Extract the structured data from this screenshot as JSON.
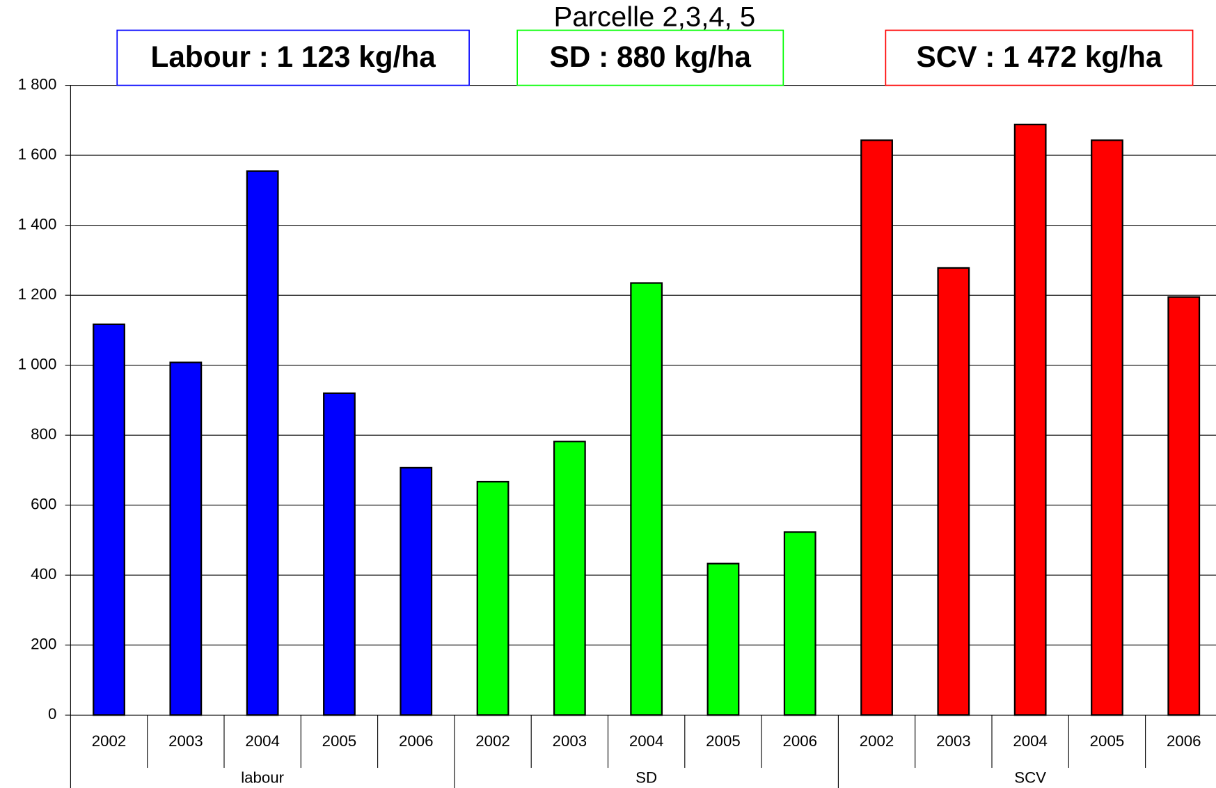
{
  "chart_data": {
    "type": "bar",
    "title": "Parcelle 2,3,4, 5",
    "annotations": [
      {
        "text": "Labour : 1 123 kg/ha",
        "color": "#0000ff"
      },
      {
        "text": "SD : 880  kg/ha",
        "color": "#00ff00"
      },
      {
        "text": "SCV : 1 472 kg/ha",
        "color": "#ff0000"
      }
    ],
    "groups": [
      {
        "name": "labour",
        "color": "#0000ff",
        "categories": [
          "2002",
          "2003",
          "2004",
          "2005",
          "2006"
        ],
        "values": [
          1117,
          1008,
          1555,
          920,
          707
        ]
      },
      {
        "name": "SD",
        "color": "#00ff00",
        "categories": [
          "2002",
          "2003",
          "2004",
          "2005",
          "2006"
        ],
        "values": [
          667,
          782,
          1235,
          433,
          523
        ]
      },
      {
        "name": "SCV",
        "color": "#ff0000",
        "categories": [
          "2002",
          "2003",
          "2004",
          "2005",
          "2006"
        ],
        "values": [
          1643,
          1278,
          1688,
          1643,
          1195
        ]
      }
    ],
    "ylim": [
      0,
      1800
    ],
    "yticks": [
      0,
      200,
      400,
      600,
      800,
      {
        "value": 1000,
        "label": "1 000"
      },
      {
        "value": 1200,
        "label": "1 200"
      },
      {
        "value": 1400,
        "label": "1 400"
      },
      {
        "value": 1600,
        "label": "1 600"
      },
      {
        "value": 1800,
        "label": "1 800"
      }
    ],
    "grid": true
  }
}
